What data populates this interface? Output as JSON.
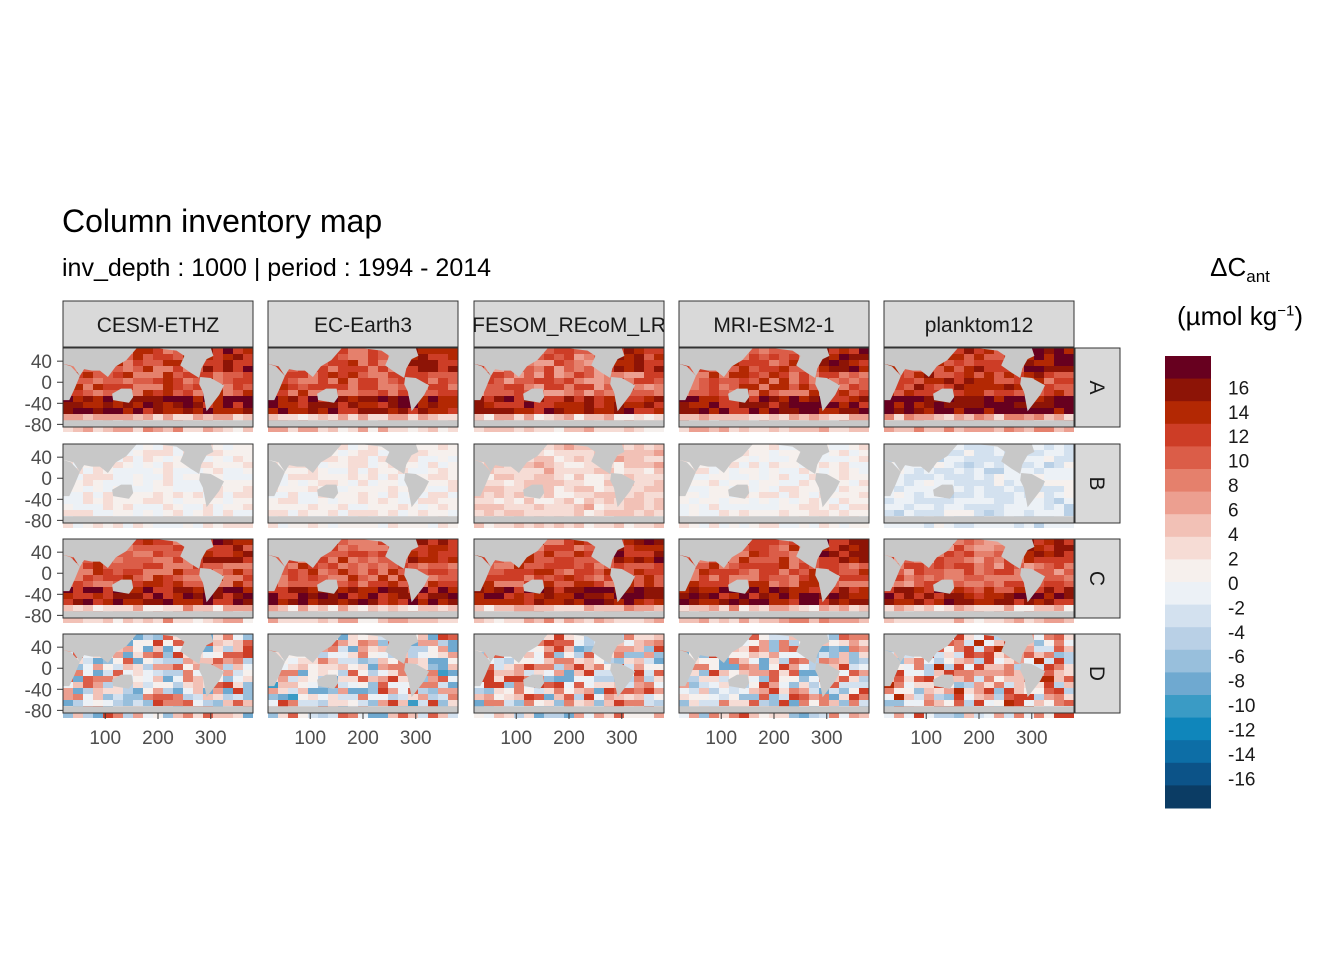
{
  "title": "Column inventory map",
  "subtitle": "inv_depth : 1000 | period : 1994 - 2014",
  "legend": {
    "title_symbol": "ΔC",
    "title_subscript": "ant",
    "unit_prefix": "(µmol kg",
    "unit_superscript": "−1",
    "unit_suffix": ")"
  },
  "chart_data": {
    "type": "heatmap",
    "title": "Column inventory map",
    "subtitle": "inv_depth : 1000 | period : 1994 - 2014",
    "facet_columns": [
      "CESM-ETHZ",
      "EC-Earth3",
      "FESOM_REcoM_LR",
      "MRI-ESM2-1",
      "planktom12"
    ],
    "facet_rows": [
      "A",
      "B",
      "C",
      "D"
    ],
    "x_ticks": [
      100,
      200,
      300
    ],
    "y_ticks": [
      40,
      0,
      -40,
      -80
    ],
    "xlim": [
      20,
      380
    ],
    "ylim": [
      -85,
      65
    ],
    "land_color": "#c8c8c8",
    "legend_breaks": [
      16,
      14,
      12,
      10,
      8,
      6,
      4,
      2,
      0,
      -2,
      -4,
      -6,
      -8,
      -10,
      -12,
      -14,
      -16
    ],
    "legend_colors": [
      "#67001f",
      "#8d1406",
      "#b32803",
      "#cd3d26",
      "#db5d48",
      "#e5806c",
      "#ec9f90",
      "#f2c1b6",
      "#f6dcd5",
      "#f6f0ed",
      "#ecf1f6",
      "#d3e1ef",
      "#b9d0e6",
      "#98bfdc",
      "#6fa9d0",
      "#3a9bc5",
      "#0f86bb",
      "#0d6ea6",
      "#0c5388",
      "#0b3c64"
    ],
    "panel_mean_intensity": {
      "A": [
        0.62,
        0.6,
        0.55,
        0.62,
        0.7
      ],
      "B": [
        0.05,
        0.05,
        0.2,
        0.04,
        -0.1
      ],
      "C": [
        0.6,
        0.6,
        0.62,
        0.62,
        0.55
      ],
      "D": [
        0.1,
        0.05,
        0.15,
        0.1,
        0.2
      ]
    }
  }
}
